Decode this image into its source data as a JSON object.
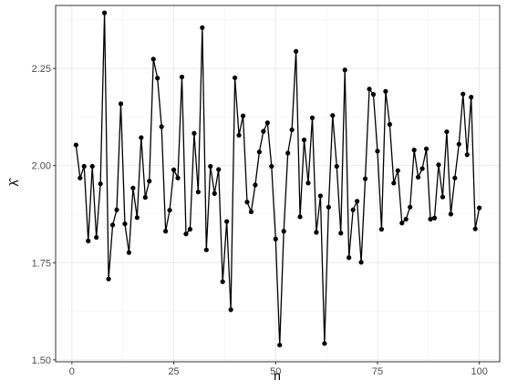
{
  "chart_data": {
    "type": "line",
    "xlabel": "n",
    "ylabel": "λ̂",
    "xlim": [
      -4,
      105
    ],
    "ylim": [
      1.495,
      2.412
    ],
    "x_ticks": [
      0,
      25,
      50,
      75,
      100
    ],
    "x_tick_labels": [
      "0",
      "25",
      "50",
      "75",
      "100"
    ],
    "y_ticks": [
      1.5,
      1.75,
      2.0,
      2.25
    ],
    "y_tick_labels": [
      "1.50",
      "1.75",
      "2.00",
      "2.25"
    ],
    "grid": true,
    "series": [
      {
        "x": [
          1,
          2,
          3,
          4,
          5,
          6,
          7,
          8,
          9,
          10,
          11,
          12,
          13,
          14,
          15,
          16,
          17,
          18,
          19,
          20,
          21,
          22,
          23,
          24,
          25,
          26,
          27,
          28,
          29,
          30,
          31,
          32,
          33,
          34,
          35,
          36,
          37,
          38,
          39,
          40,
          41,
          42,
          43,
          44,
          45,
          46,
          47,
          48,
          49,
          50,
          51,
          52,
          53,
          54,
          55,
          56,
          57,
          58,
          59,
          60,
          61,
          62,
          63,
          64,
          65,
          66,
          67,
          68,
          69,
          70,
          71,
          72,
          73,
          74,
          75,
          76,
          77,
          78,
          79,
          80,
          81,
          82,
          83,
          84,
          85,
          86,
          87,
          88,
          89,
          90,
          91,
          92,
          93,
          94,
          95,
          96,
          97,
          98,
          99,
          100
        ],
        "y": [
          2.053,
          1.968,
          1.998,
          1.806,
          1.998,
          1.815,
          1.953,
          2.393,
          1.708,
          1.847,
          1.886,
          2.159,
          1.85,
          1.776,
          1.942,
          1.866,
          2.072,
          1.918,
          1.96,
          2.274,
          2.225,
          2.1,
          1.831,
          1.885,
          1.989,
          1.968,
          2.228,
          1.824,
          1.836,
          2.083,
          1.932,
          2.355,
          1.783,
          1.998,
          1.928,
          1.99,
          1.701,
          1.856,
          1.629,
          2.226,
          2.078,
          2.128,
          1.906,
          1.881,
          1.95,
          2.035,
          2.088,
          2.11,
          1.998,
          1.811,
          1.538,
          1.831,
          2.032,
          2.092,
          2.294,
          1.868,
          2.066,
          1.955,
          2.123,
          1.828,
          1.922,
          1.542,
          1.893,
          2.129,
          1.998,
          1.826,
          2.246,
          1.763,
          1.886,
          1.908,
          1.751,
          1.966,
          2.197,
          2.183,
          2.037,
          1.836,
          2.191,
          2.106,
          1.955,
          1.987,
          1.852,
          1.862,
          1.893,
          2.04,
          1.97,
          1.992,
          2.043,
          1.862,
          1.865,
          2.002,
          1.919,
          2.087,
          1.875,
          1.968,
          2.055,
          2.184,
          2.028,
          2.176,
          1.837,
          1.891
        ]
      }
    ]
  }
}
